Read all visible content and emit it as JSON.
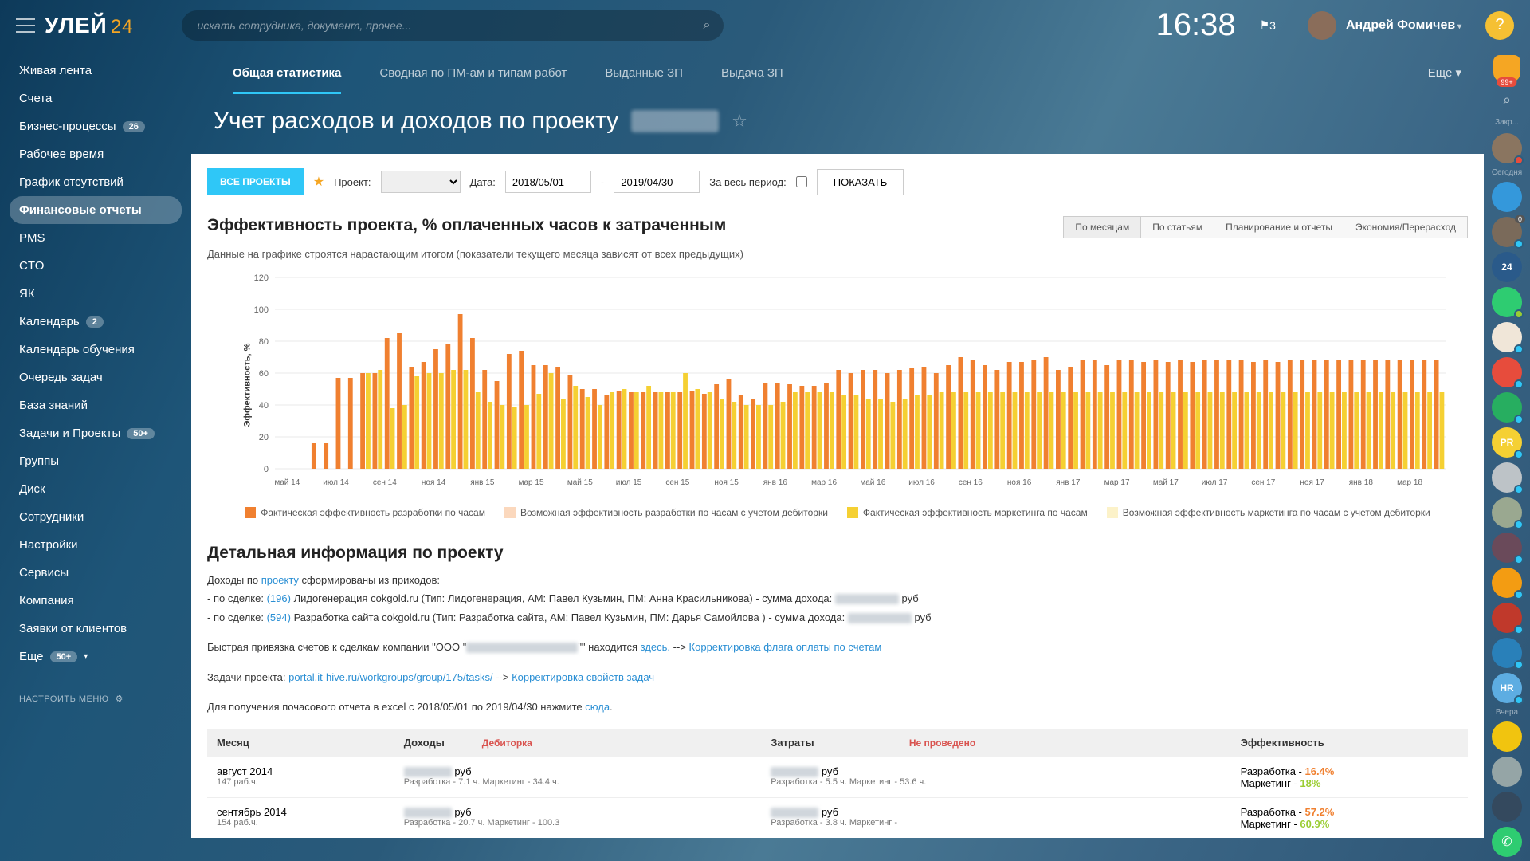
{
  "topbar": {
    "logo": "УЛЕЙ",
    "logo_sub": "24",
    "search_placeholder": "искать сотрудника, документ, прочее...",
    "clock": "16:38",
    "flag_count": "3",
    "user_name": "Андрей Фомичев"
  },
  "nav": {
    "items": [
      {
        "label": "Живая лента"
      },
      {
        "label": "Счета"
      },
      {
        "label": "Бизнес-процессы",
        "badge": "26"
      },
      {
        "label": "Рабочее время"
      },
      {
        "label": "График отсутствий"
      },
      {
        "label": "Финансовые отчеты",
        "active": true
      },
      {
        "label": "PMS"
      },
      {
        "label": "CTO"
      },
      {
        "label": "ЯК"
      },
      {
        "label": "Календарь",
        "badge": "2"
      },
      {
        "label": "Календарь обучения"
      },
      {
        "label": "Очередь задач"
      },
      {
        "label": "База знаний"
      },
      {
        "label": "Задачи и Проекты",
        "badge": "50+"
      },
      {
        "label": "Группы"
      },
      {
        "label": "Диск"
      },
      {
        "label": "Сотрудники"
      },
      {
        "label": "Настройки"
      },
      {
        "label": "Сервисы"
      },
      {
        "label": "Компания"
      },
      {
        "label": "Заявки от клиентов"
      }
    ],
    "more_label": "Еще",
    "more_badge": "50+",
    "settings_label": "НАСТРОИТЬ МЕНЮ"
  },
  "rail": {
    "labels": {
      "zak": "Закр...",
      "today": "Сегодня",
      "yest": "Вчера"
    },
    "avatars": [
      {
        "bg": "#8a7560",
        "dot": "#e74c3c",
        "cnt": ""
      },
      {
        "bg": "#3498db",
        "dot": "",
        "cnt": ""
      },
      {
        "bg": "#7a6a5a",
        "dot": "#2fc7f7",
        "cnt": "0"
      },
      {
        "bg": "#2a5a8a",
        "dot": "",
        "cnt": "",
        "txt": "24"
      },
      {
        "bg": "#2ecc71",
        "dot": "#9acd32",
        "cnt": ""
      },
      {
        "bg": "#f0e6d8",
        "dot": "#2fc7f7",
        "cnt": ""
      },
      {
        "bg": "#e74c3c",
        "dot": "#2fc7f7",
        "cnt": ""
      },
      {
        "bg": "#27ae60",
        "dot": "#2fc7f7",
        "cnt": ""
      },
      {
        "bg": "#f5d033",
        "dot": "#2fc7f7",
        "cnt": "",
        "txt": "PR"
      },
      {
        "bg": "#bdc3c7",
        "dot": "#2fc7f7",
        "cnt": ""
      },
      {
        "bg": "#9aa890",
        "dot": "#2fc7f7",
        "cnt": ""
      },
      {
        "bg": "#6a4a5a",
        "dot": "#2fc7f7",
        "cnt": ""
      },
      {
        "bg": "#f39c12",
        "dot": "#2fc7f7",
        "cnt": ""
      },
      {
        "bg": "#c0392b",
        "dot": "#2fc7f7",
        "cnt": ""
      },
      {
        "bg": "#2980b9",
        "dot": "#2fc7f7",
        "cnt": ""
      },
      {
        "bg": "#5dade2",
        "dot": "#2fc7f7",
        "cnt": "",
        "txt": "HR"
      },
      {
        "bg": "#f1c40f",
        "dot": "",
        "cnt": ""
      },
      {
        "bg": "#95a5a6",
        "dot": "",
        "cnt": ""
      },
      {
        "bg": "#34495e",
        "dot": "",
        "cnt": ""
      }
    ],
    "call_bg": "#2ecc71"
  },
  "tabs": {
    "items": [
      {
        "label": "Общая статистика",
        "active": true
      },
      {
        "label": "Сводная по ПМ-ам и типам работ"
      },
      {
        "label": "Выданные ЗП"
      },
      {
        "label": "Выдача ЗП"
      }
    ],
    "more": "Еще ▾"
  },
  "page_title": "Учет расходов и доходов по проекту",
  "filters": {
    "all_projects": "ВСЕ ПРОЕКТЫ",
    "project_label": "Проект:",
    "date_label": "Дата:",
    "date_from": "2018/05/01",
    "date_to": "2019/04/30",
    "all_period": "За весь период:",
    "show": "ПОКАЗАТЬ"
  },
  "chart": {
    "title": "Эффективность проекта, % оплаченных часов к затраченным",
    "subtitle": "Данные на графике строятся нарастающим итогом (показатели текущего месяца зависят от всех предыдущих)",
    "ylabel": "Эффективность, %",
    "ylim": [
      0,
      120
    ],
    "ytick_step": 20,
    "xlabels": [
      "май 14",
      "июл 14",
      "сен 14",
      "ноя 14",
      "янв 15",
      "мар 15",
      "май 15",
      "июл 15",
      "сен 15",
      "ноя 15",
      "янв 16",
      "мар 16",
      "май 16",
      "июл 16",
      "сен 16",
      "ноя 16",
      "янв 17",
      "мар 17",
      "май 17",
      "июл 17",
      "сен 17",
      "ноя 17",
      "янв 18",
      "мар 18"
    ],
    "colors": {
      "dev": "#f08030",
      "dev_light": "#fbd8bd",
      "mkt": "#f5d033",
      "mkt_light": "#fcf2c9",
      "grid": "#e8e8e8",
      "axis": "#888",
      "bg": "#ffffff"
    },
    "bar_group_count": 48,
    "series_dev": [
      0,
      0,
      0,
      16,
      16,
      57,
      57,
      60,
      60,
      82,
      85,
      64,
      67,
      75,
      78,
      97,
      82,
      62,
      55,
      72,
      74,
      65,
      65,
      64,
      59,
      50,
      50,
      46,
      49,
      48,
      48,
      48,
      48,
      48,
      49,
      47,
      53,
      56,
      46,
      44,
      54,
      54,
      53,
      52,
      52,
      54,
      62,
      60,
      62,
      62,
      60,
      62,
      63,
      64,
      60,
      65,
      70,
      68,
      65,
      62,
      67,
      67,
      68,
      70,
      62,
      64,
      68,
      68,
      65,
      68,
      68,
      67,
      68,
      67,
      68,
      67,
      68,
      68,
      68,
      68,
      67,
      68,
      67,
      68,
      68,
      68,
      68,
      68,
      68,
      68,
      68,
      68,
      68,
      68,
      68,
      68
    ],
    "series_mkt": [
      0,
      0,
      0,
      0,
      0,
      0,
      0,
      60,
      62,
      38,
      40,
      58,
      60,
      60,
      62,
      62,
      48,
      42,
      40,
      39,
      40,
      47,
      60,
      44,
      52,
      45,
      40,
      48,
      50,
      48,
      52,
      48,
      48,
      60,
      50,
      48,
      44,
      42,
      40,
      40,
      40,
      42,
      48,
      48,
      48,
      48,
      46,
      46,
      44,
      44,
      42,
      44,
      46,
      46,
      48,
      48,
      48,
      48,
      48,
      48,
      48,
      48,
      48,
      48,
      48,
      48,
      48,
      48,
      48,
      48,
      48,
      48,
      48,
      48,
      48,
      48,
      48,
      48,
      48,
      48,
      48,
      48,
      48,
      48,
      48,
      48,
      48,
      48,
      48,
      48,
      48,
      48,
      48,
      48,
      48,
      48
    ],
    "legend": [
      {
        "color": "#f08030",
        "label": "Фактическая эффективность разработки по часам"
      },
      {
        "color": "#fbd8bd",
        "label": "Возможная эффективность разработки по часам с учетом дебиторки"
      },
      {
        "color": "#f5d033",
        "label": "Фактическая эффективность маркетинга по часам"
      },
      {
        "color": "#fcf2c9",
        "label": "Возможная эффективность маркетинга по часам с учетом дебиторки"
      }
    ],
    "view_tabs": [
      "По месяцам",
      "По статьям",
      "Планирование и отчеты",
      "Экономия/Перерасход"
    ]
  },
  "detail": {
    "heading": "Детальная информация по проекту",
    "line1_a": "Доходы по ",
    "line1_link": "проекту",
    "line1_b": " сформированы из приходов:",
    "deal1_a": "- по сделке: ",
    "deal1_id": "(196)",
    "deal1_b": " Лидогенерация cokgold.ru (Тип: Лидогенерация, АМ: Павел Кузьмин, ПМ: Анна Красильникова) - сумма дохода: ",
    "deal1_c": " руб",
    "deal2_a": "- по сделке: ",
    "deal2_id": "(594)",
    "deal2_b": " Разработка сайта cokgold.ru (Тип: Разработка сайта, АМ: Павел Кузьмин, ПМ: Дарья Самойлова ) - сумма дохода: ",
    "deal2_c": " руб",
    "quick_a": "Быстрая привязка счетов к сделкам компании \"ООО \"",
    "quick_b": "\"\" находится ",
    "quick_here": "здесь.",
    "quick_arrow": " --> ",
    "quick_link": "Корректировка флага оплаты по счетам",
    "tasks_a": "Задачи проекта: ",
    "tasks_link": "portal.it-hive.ru/workgroups/group/175/tasks/",
    "tasks_arrow": " --> ",
    "tasks_link2": "Корректировка свойств задач",
    "excel_a": "Для получения почасового отчета в excel с 2018/05/01 по 2019/04/30 нажмите ",
    "excel_link": "сюда",
    "excel_dot": "."
  },
  "table": {
    "headers": {
      "month": "Месяц",
      "income": "Доходы",
      "debitor": "Дебиторка",
      "expense": "Затраты",
      "notdone": "Не проведено",
      "eff": "Эффективность"
    },
    "rows": [
      {
        "month": "август 2014",
        "month_sub": "147 раб.ч.",
        "income_sub": "Разработка - 7.1 ч. Маркетинг - 34.4 ч.",
        "expense_sub": "Разработка - 5.5 ч. Маркетинг - 53.6 ч.",
        "eff_dev": "16.4%",
        "eff_mkt": "18%"
      },
      {
        "month": "сентябрь 2014",
        "month_sub": "154 раб.ч.",
        "income_sub": "Разработка - 20.7 ч. Маркетинг - 100.3",
        "expense_sub": "Разработка - 3.8 ч. Маркетинг -",
        "eff_dev": "57.2%",
        "eff_mkt": "60.9%"
      }
    ],
    "rub": " руб",
    "dev_label": "Разработка - ",
    "mkt_label": "Маркетинг - "
  }
}
